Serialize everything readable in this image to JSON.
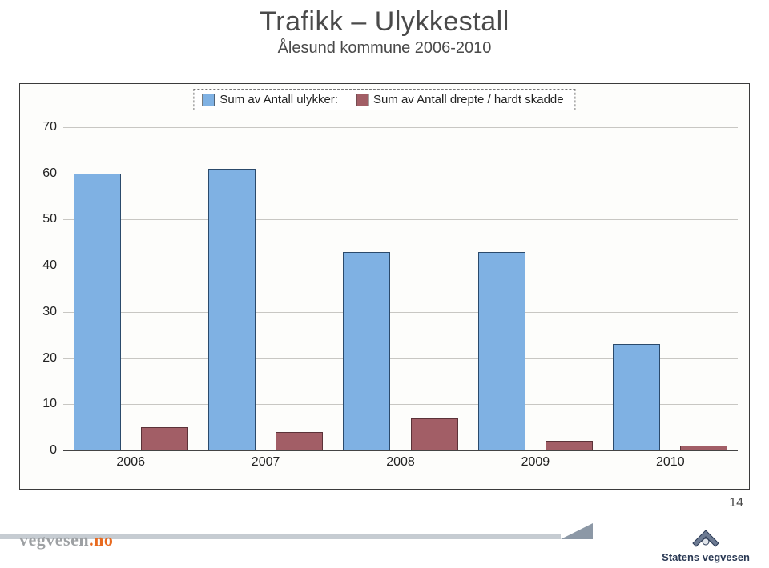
{
  "title": "Trafikk – Ulykkestall",
  "subtitle": "Ålesund kommune 2006-2010",
  "page_number": "14",
  "legend": {
    "series1": "Sum av Antall ulykker:",
    "series2": "Sum av Antall drepte / hardt skadde"
  },
  "footer": {
    "brand_left": "vegvesen",
    "brand_left_suffix": ".no",
    "brand_right": "Statens vegvesen"
  },
  "chart": {
    "type": "bar",
    "background_color": "#fdfdfb",
    "border_color": "#3b3b3b",
    "grid_color": "#c8c7c3",
    "axis_color": "#444444",
    "tick_font_size": 16,
    "legend_font_size": 15,
    "ylim": [
      0,
      70
    ],
    "ytick_step": 10,
    "yticks": [
      0,
      10,
      20,
      30,
      40,
      50,
      60,
      70
    ],
    "categories": [
      "2006",
      "2007",
      "2008",
      "2009",
      "2010"
    ],
    "bar_group_gap_pct": 3,
    "bar_width_pct": 7.0,
    "series": [
      {
        "name": "Sum av Antall ulykker:",
        "color": "#7fb1e3",
        "border": "#2b4a6b",
        "values": [
          60,
          61,
          43,
          43,
          23
        ]
      },
      {
        "name": "Sum av Antall drepte / hardt skadde",
        "color": "#a25e66",
        "border": "#5b3238",
        "values": [
          5,
          4,
          7,
          2,
          1
        ]
      }
    ]
  },
  "colors": {
    "title_text": "#4a4a4a",
    "page_bg": "#ffffff",
    "footer_stripe": "#c6ccd2",
    "footer_wedge": "#8c98a6",
    "brand_grey": "#9da0a3",
    "brand_orange": "#e86a20",
    "brand_blue": "#2b3a55"
  }
}
